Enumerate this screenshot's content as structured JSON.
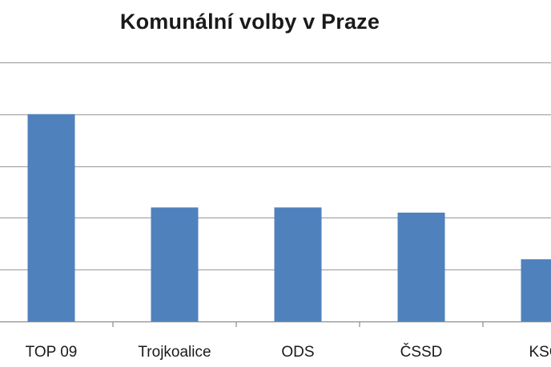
{
  "chart_data": {
    "type": "bar",
    "title": "Komunální volby v Praze",
    "xlabel": "",
    "ylabel": "",
    "categories": [
      "TOP 09",
      "Trojkoalice",
      "ODS",
      "ČSSD",
      "KSČ"
    ],
    "values": [
      40,
      22,
      22,
      21,
      12
    ],
    "ylim": [
      0,
      50
    ],
    "grid": true,
    "legend": "none",
    "colors": {
      "bar": "#4f81bd",
      "grid": "#a6a6a6",
      "axis": "#8c8c8c"
    }
  }
}
